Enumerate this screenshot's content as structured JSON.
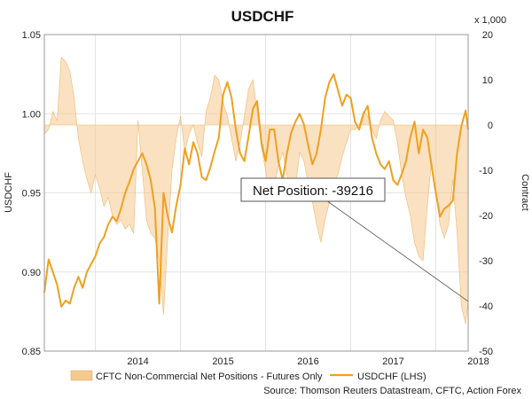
{
  "chart_data": {
    "type": "line",
    "title": "USDCHF",
    "ylabel_left": "USDCHF",
    "ylabel_right": "Contract",
    "right_unit": "x 1,000",
    "ylim_left": [
      0.85,
      1.05
    ],
    "ylim_right": [
      -50,
      20
    ],
    "yticks_left": [
      "0.85",
      "0.90",
      "0.95",
      "1.00",
      "1.05"
    ],
    "yticks_right": [
      "-50",
      "-40",
      "-30",
      "-20",
      "-10",
      "0",
      "10",
      "20"
    ],
    "xlim": [
      2013.4,
      2018.38
    ],
    "x_tick_labels": [
      "2014",
      "2015",
      "2016",
      "2017",
      "2018"
    ],
    "x_tick_positions": [
      2014.0,
      2015.0,
      2016.0,
      2017.0,
      2018.0
    ],
    "grid": true,
    "legend": "bottom",
    "series": [
      {
        "name": "CFTC Non-Commercial Net Positions - Futures Only",
        "kind": "area",
        "axis": "right",
        "color": "#f5c98e",
        "x": [
          2013.4,
          2013.45,
          2013.5,
          2013.55,
          2013.6,
          2013.65,
          2013.7,
          2013.75,
          2013.8,
          2013.85,
          2013.9,
          2013.95,
          2014.0,
          2014.05,
          2014.1,
          2014.15,
          2014.2,
          2014.25,
          2014.3,
          2014.35,
          2014.4,
          2014.45,
          2014.5,
          2014.55,
          2014.6,
          2014.65,
          2014.7,
          2014.75,
          2014.8,
          2014.85,
          2014.9,
          2014.95,
          2015.0,
          2015.05,
          2015.1,
          2015.15,
          2015.2,
          2015.25,
          2015.3,
          2015.35,
          2015.4,
          2015.45,
          2015.5,
          2015.55,
          2015.6,
          2015.65,
          2015.7,
          2015.75,
          2015.8,
          2015.85,
          2015.9,
          2015.95,
          2016.0,
          2016.05,
          2016.1,
          2016.15,
          2016.2,
          2016.25,
          2016.3,
          2016.35,
          2016.4,
          2016.45,
          2016.5,
          2016.55,
          2016.6,
          2016.65,
          2016.7,
          2016.75,
          2016.8,
          2016.85,
          2016.9,
          2016.95,
          2017.0,
          2017.05,
          2017.1,
          2017.15,
          2017.2,
          2017.25,
          2017.3,
          2017.35,
          2017.4,
          2017.45,
          2017.5,
          2017.55,
          2017.6,
          2017.65,
          2017.7,
          2017.75,
          2017.8,
          2017.85,
          2017.9,
          2017.95,
          2018.0,
          2018.05,
          2018.1,
          2018.15,
          2018.2,
          2018.25,
          2018.3,
          2018.35,
          2018.38
        ],
        "y": [
          -2,
          -1,
          3,
          1,
          15,
          14,
          12,
          6,
          -3,
          -8,
          -12,
          -15,
          -11,
          -14,
          -18,
          -16,
          -20,
          -22,
          -21,
          -23,
          -22,
          -24,
          1,
          -10,
          -21,
          -24,
          -25,
          -30,
          -42,
          -25,
          -10,
          -3,
          2,
          -6,
          -2,
          0,
          -4,
          -7,
          3,
          6,
          11,
          10,
          5,
          2,
          -3,
          -8,
          -4,
          2,
          8,
          10,
          3,
          -5,
          -10,
          -16,
          -14,
          -9,
          -6,
          -11,
          -15,
          -14,
          -6,
          -8,
          -13,
          -17,
          -22,
          -26,
          -21,
          -17,
          -13,
          -11,
          -7,
          -4,
          -1,
          -1,
          0,
          3,
          2,
          -1,
          -3,
          1,
          3,
          2,
          1,
          -4,
          -11,
          -16,
          -20,
          -26,
          -29,
          -30,
          -18,
          -8,
          -15,
          -22,
          -25,
          -22,
          -12,
          -24,
          -40,
          -44,
          -39
        ]
      },
      {
        "name": "USDCHF (LHS)",
        "kind": "line",
        "axis": "left",
        "color": "#f0a020",
        "x": [
          2013.4,
          2013.45,
          2013.5,
          2013.55,
          2013.6,
          2013.65,
          2013.7,
          2013.75,
          2013.8,
          2013.85,
          2013.9,
          2013.95,
          2014.0,
          2014.05,
          2014.1,
          2014.15,
          2014.2,
          2014.25,
          2014.3,
          2014.35,
          2014.4,
          2014.45,
          2014.5,
          2014.55,
          2014.6,
          2014.65,
          2014.7,
          2014.75,
          2014.8,
          2014.85,
          2014.9,
          2014.95,
          2015.0,
          2015.05,
          2015.1,
          2015.15,
          2015.2,
          2015.25,
          2015.3,
          2015.35,
          2015.4,
          2015.45,
          2015.5,
          2015.55,
          2015.6,
          2015.65,
          2015.7,
          2015.75,
          2015.8,
          2015.85,
          2015.9,
          2015.95,
          2016.0,
          2016.05,
          2016.1,
          2016.15,
          2016.2,
          2016.25,
          2016.3,
          2016.35,
          2016.4,
          2016.45,
          2016.5,
          2016.55,
          2016.6,
          2016.65,
          2016.7,
          2016.75,
          2016.8,
          2016.85,
          2016.9,
          2016.95,
          2017.0,
          2017.05,
          2017.1,
          2017.15,
          2017.2,
          2017.25,
          2017.3,
          2017.35,
          2017.4,
          2017.45,
          2017.5,
          2017.55,
          2017.6,
          2017.65,
          2017.7,
          2017.75,
          2017.8,
          2017.85,
          2017.9,
          2017.95,
          2018.0,
          2018.05,
          2018.1,
          2018.15,
          2018.2,
          2018.25,
          2018.3,
          2018.35,
          2018.38
        ],
        "y": [
          0.887,
          0.908,
          0.9,
          0.892,
          0.878,
          0.882,
          0.88,
          0.89,
          0.897,
          0.89,
          0.9,
          0.905,
          0.91,
          0.918,
          0.922,
          0.93,
          0.935,
          0.932,
          0.94,
          0.95,
          0.957,
          0.965,
          0.97,
          0.975,
          0.968,
          0.958,
          0.94,
          0.88,
          0.95,
          0.935,
          0.925,
          0.942,
          0.955,
          0.978,
          0.968,
          0.982,
          0.975,
          0.96,
          0.958,
          0.966,
          0.976,
          0.985,
          1.012,
          1.02,
          1.01,
          0.99,
          0.975,
          0.97,
          0.986,
          1.003,
          1.008,
          0.982,
          0.97,
          0.99,
          0.99,
          0.97,
          0.958,
          0.975,
          0.988,
          0.995,
          1.0,
          0.993,
          0.98,
          0.968,
          0.975,
          0.99,
          1.01,
          1.02,
          1.025,
          1.015,
          1.005,
          1.012,
          1.01,
          0.995,
          0.99,
          1.0,
          1.005,
          0.985,
          0.975,
          0.968,
          0.965,
          0.97,
          0.958,
          0.955,
          0.962,
          0.97,
          0.985,
          0.995,
          0.975,
          0.99,
          0.985,
          0.967,
          0.95,
          0.935,
          0.94,
          0.942,
          0.945,
          0.975,
          0.992,
          1.002,
          0.99
        ]
      }
    ],
    "annotation": {
      "text": "Net Position: -39216",
      "target": [
        2018.38,
        -39
      ]
    },
    "source": "Source: Thomson Reuters Datastream, CFTC, Action Forex"
  }
}
